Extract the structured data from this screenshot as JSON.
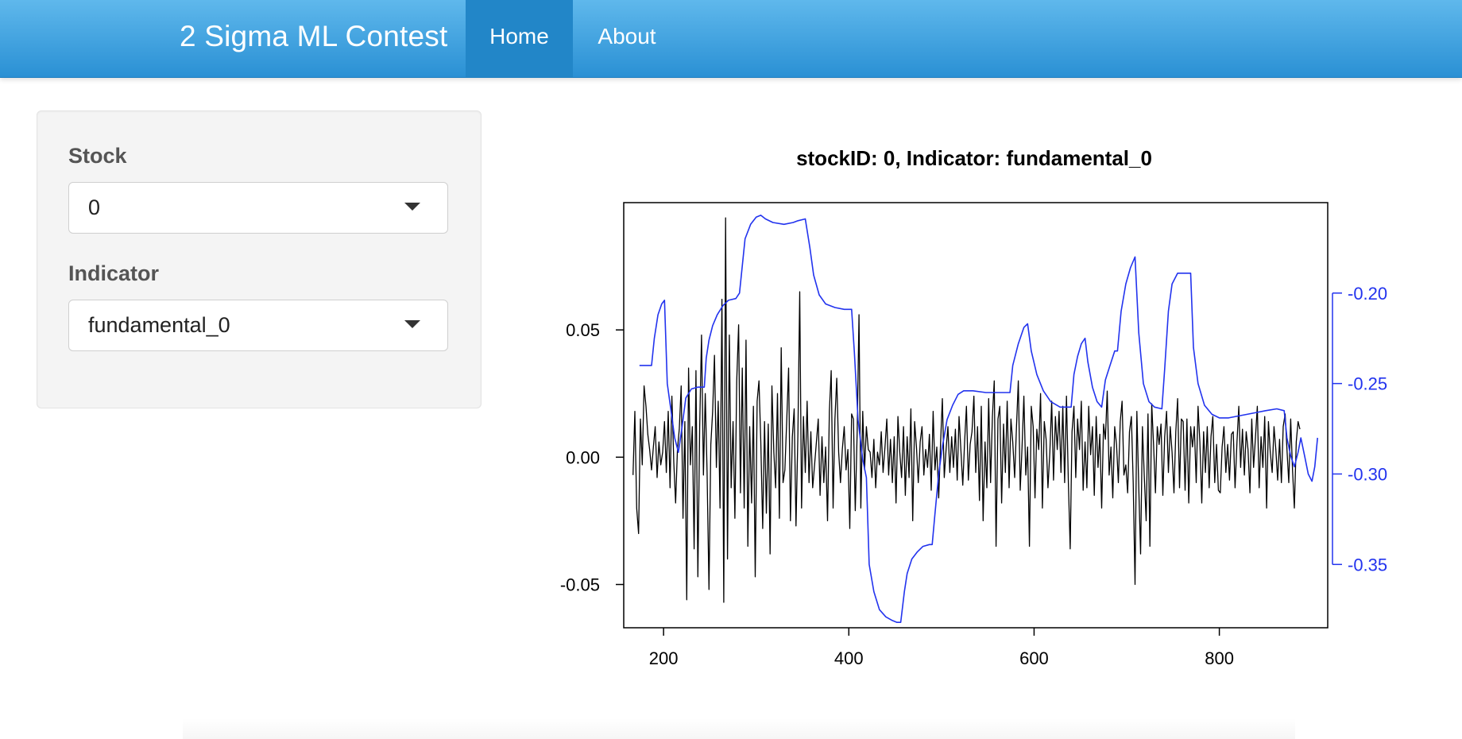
{
  "navbar": {
    "brand": "2 Sigma ML Contest",
    "tabs": [
      {
        "label": "Home",
        "active": true
      },
      {
        "label": "About",
        "active": false
      }
    ],
    "colors": {
      "top": "#5fb8ec",
      "bottom": "#2a90d4",
      "active_tab": "#2286c8"
    }
  },
  "sidebar": {
    "stock": {
      "label": "Stock",
      "value": "0"
    },
    "indicator": {
      "label": "Indicator",
      "value": "fundamental_0"
    }
  },
  "chart_data": {
    "type": "line",
    "title": "stockID: 0, Indicator: fundamental_0",
    "xlabel": "",
    "ylabel": "",
    "xlim": [
      157,
      917
    ],
    "ylim_left": [
      -0.067,
      0.1
    ],
    "ylim_right": [
      -0.385,
      -0.15
    ],
    "x_ticks": [
      {
        "value": 200,
        "label": "200"
      },
      {
        "value": 400,
        "label": "400"
      },
      {
        "value": 600,
        "label": "600"
      },
      {
        "value": 800,
        "label": "800"
      }
    ],
    "y_left_ticks": [
      {
        "value": 0.05,
        "label": "0.05"
      },
      {
        "value": 0.0,
        "label": "0.00"
      },
      {
        "value": -0.05,
        "label": "-0.05"
      }
    ],
    "y_right_ticks": [
      {
        "value": -0.2,
        "label": "-0.20"
      },
      {
        "value": -0.25,
        "label": "-0.25"
      },
      {
        "value": -0.3,
        "label": "-0.30"
      },
      {
        "value": -0.35,
        "label": "-0.35"
      }
    ],
    "grid": false,
    "series": [
      {
        "axis": "left",
        "color": "#000000",
        "x_start": 167,
        "x_step": 2,
        "values": [
          -0.007,
          0.018,
          -0.02,
          -0.03,
          0.015,
          -0.003,
          0.028,
          0.02,
          0.009,
          0.003,
          -0.005,
          0.004,
          0.012,
          -0.008,
          0.006,
          -0.003,
          0.002,
          0.014,
          -0.006,
          0.018,
          -0.012,
          0.024,
          -0.002,
          -0.018,
          0.003,
          0.011,
          0.028,
          -0.024,
          0.014,
          -0.056,
          0.035,
          -0.003,
          0.012,
          -0.036,
          0.034,
          -0.047,
          0.012,
          0.048,
          -0.007,
          0.025,
          -0.006,
          -0.052,
          0.005,
          0.018,
          0.04,
          -0.004,
          0.022,
          -0.02,
          0.062,
          -0.057,
          0.094,
          -0.04,
          0.048,
          -0.012,
          0.014,
          -0.024,
          0.03,
          0.052,
          -0.014,
          0.035,
          -0.02,
          0.046,
          -0.035,
          0.012,
          -0.018,
          0.02,
          -0.047,
          0.022,
          0.03,
          0.006,
          -0.028,
          0.014,
          -0.022,
          0.013,
          -0.038,
          0.028,
          0.002,
          -0.012,
          0.025,
          -0.024,
          0.043,
          -0.01,
          -0.005,
          0.015,
          0.035,
          -0.025,
          0.008,
          0.019,
          -0.027,
          0.009,
          0.065,
          -0.02,
          0.016,
          -0.006,
          0.022,
          -0.01,
          0.01,
          -0.012,
          -0.003,
          0.006,
          0.015,
          -0.015,
          0.008,
          -0.01,
          0.004,
          -0.025,
          0.018,
          0.034,
          -0.02,
          0.015,
          0.031,
          0.002,
          -0.01,
          0.003,
          0.012,
          -0.005,
          0.003,
          -0.028,
          0.017,
          0.015,
          -0.021,
          0.01,
          0.056,
          -0.02,
          0.018,
          -0.005,
          0.012,
          0.003,
          0.002,
          -0.008,
          0.007,
          -0.012,
          0.002,
          -0.003,
          0.01,
          -0.006,
          0.004,
          0.015,
          -0.007,
          0.007,
          -0.01,
          0.008,
          -0.018,
          0.016,
          0.002,
          -0.008,
          0.012,
          -0.015,
          0.008,
          -0.008,
          0.019,
          -0.025,
          0.014,
          0.004,
          -0.01,
          0.006,
          0.012,
          -0.007,
          0.003,
          -0.004,
          0.009,
          -0.013,
          0.018,
          -0.005,
          0.004,
          -0.016,
          0.005,
          0.023,
          -0.008,
          0.003,
          0.012,
          -0.006,
          0.008,
          -0.004,
          0.011,
          -0.009,
          0.016,
          0.003,
          -0.011,
          0.006,
          0.02,
          -0.009,
          0.005,
          0.01,
          0.024,
          -0.006,
          0.012,
          -0.017,
          0.02,
          -0.025,
          0.006,
          -0.012,
          0.023,
          -0.01,
          0.016,
          0.03,
          -0.035,
          0.015,
          0.02,
          -0.018,
          0.013,
          -0.006,
          0.022,
          -0.012,
          0.015,
          0.006,
          -0.008,
          0.012,
          0.03,
          -0.013,
          0.004,
          0.024,
          -0.007,
          0.004,
          -0.035,
          0.02,
          0.012,
          -0.016,
          0.011,
          0.003,
          0.025,
          -0.02,
          0.014,
          0.007,
          -0.012,
          0.002,
          0.022,
          -0.009,
          0.016,
          0.003,
          0.018,
          -0.006,
          0.02,
          -0.01,
          0.024,
          -0.01,
          -0.036,
          0.01,
          0.02,
          -0.008,
          0.015,
          0.003,
          0.022,
          -0.013,
          0.006,
          -0.012,
          0.02,
          0.001,
          0.012,
          -0.015,
          0.016,
          -0.004,
          0.009,
          -0.02,
          0.013,
          0.007,
          0.026,
          -0.007,
          0.004,
          -0.016,
          0.012,
          0.005,
          -0.01,
          0.014,
          0.022,
          -0.007,
          -0.003,
          -0.014,
          0.01,
          0.016,
          -0.01,
          -0.05,
          0.018,
          -0.012,
          -0.038,
          0.012,
          -0.008,
          -0.025,
          0.017,
          -0.035,
          0.021,
          0.005,
          -0.014,
          0.012,
          0.005,
          0.013,
          -0.015,
          0.008,
          0.018,
          -0.006,
          0.012,
          0.002,
          -0.014,
          0.01,
          0.023,
          -0.012,
          0.015,
          0.014,
          -0.013,
          0.015,
          -0.018,
          0.012,
          0.004,
          0.012,
          -0.01,
          0.02,
          0.006,
          -0.018,
          0.01,
          -0.006,
          0.012,
          -0.012,
          0.008,
          0.016,
          -0.01,
          0.005,
          -0.013,
          -0.014,
          0.004,
          0.012,
          -0.006,
          0.005,
          -0.009,
          0.009,
          0.01,
          -0.012,
          0.006,
          0.02,
          -0.004,
          0.011,
          -0.007,
          0.01,
          0.003,
          -0.014,
          0.015,
          -0.004,
          0.008,
          0.02,
          -0.012,
          0.008,
          -0.004,
          0.016,
          -0.02,
          0.014,
          0.002,
          -0.006,
          0.012,
          0.003,
          -0.009,
          0.007,
          -0.01,
          0.012,
          0.017,
          0.003,
          -0.01,
          0.015,
          -0.005,
          -0.02,
          0.006,
          0.014,
          0.011
        ]
      },
      {
        "axis": "right",
        "color": "#2233ee",
        "points": [
          [
            174,
            -0.24
          ],
          [
            187,
            -0.24
          ],
          [
            190,
            -0.225
          ],
          [
            194,
            -0.212
          ],
          [
            198,
            -0.206
          ],
          [
            201,
            -0.204
          ],
          [
            204,
            -0.25
          ],
          [
            208,
            -0.265
          ],
          [
            212,
            -0.28
          ],
          [
            216,
            -0.288
          ],
          [
            220,
            -0.274
          ],
          [
            224,
            -0.258
          ],
          [
            230,
            -0.253
          ],
          [
            237,
            -0.252
          ],
          [
            244,
            -0.252
          ],
          [
            246,
            -0.236
          ],
          [
            249,
            -0.226
          ],
          [
            253,
            -0.218
          ],
          [
            258,
            -0.212
          ],
          [
            264,
            -0.207
          ],
          [
            270,
            -0.204
          ],
          [
            278,
            -0.203
          ],
          [
            282,
            -0.2
          ],
          [
            288,
            -0.17
          ],
          [
            294,
            -0.162
          ],
          [
            300,
            -0.158
          ],
          [
            305,
            -0.157
          ],
          [
            310,
            -0.159
          ],
          [
            318,
            -0.161
          ],
          [
            330,
            -0.162
          ],
          [
            340,
            -0.161
          ],
          [
            345,
            -0.16
          ],
          [
            353,
            -0.159
          ],
          [
            358,
            -0.175
          ],
          [
            362,
            -0.19
          ],
          [
            368,
            -0.201
          ],
          [
            375,
            -0.206
          ],
          [
            385,
            -0.208
          ],
          [
            395,
            -0.209
          ],
          [
            403,
            -0.209
          ],
          [
            406,
            -0.233
          ],
          [
            410,
            -0.27
          ],
          [
            415,
            -0.292
          ],
          [
            419,
            -0.302
          ],
          [
            422,
            -0.35
          ],
          [
            427,
            -0.365
          ],
          [
            433,
            -0.375
          ],
          [
            440,
            -0.379
          ],
          [
            447,
            -0.381
          ],
          [
            452,
            -0.382
          ],
          [
            456,
            -0.382
          ],
          [
            460,
            -0.365
          ],
          [
            463,
            -0.355
          ],
          [
            468,
            -0.347
          ],
          [
            474,
            -0.343
          ],
          [
            480,
            -0.34
          ],
          [
            487,
            -0.339
          ],
          [
            490,
            -0.339
          ],
          [
            493,
            -0.322
          ],
          [
            497,
            -0.3
          ],
          [
            501,
            -0.285
          ],
          [
            506,
            -0.27
          ],
          [
            512,
            -0.262
          ],
          [
            518,
            -0.256
          ],
          [
            524,
            -0.254
          ],
          [
            534,
            -0.254
          ],
          [
            548,
            -0.255
          ],
          [
            562,
            -0.255
          ],
          [
            574,
            -0.255
          ],
          [
            577,
            -0.24
          ],
          [
            583,
            -0.228
          ],
          [
            589,
            -0.219
          ],
          [
            593,
            -0.217
          ],
          [
            597,
            -0.232
          ],
          [
            603,
            -0.245
          ],
          [
            610,
            -0.254
          ],
          [
            618,
            -0.26
          ],
          [
            628,
            -0.263
          ],
          [
            640,
            -0.263
          ],
          [
            643,
            -0.245
          ],
          [
            647,
            -0.235
          ],
          [
            651,
            -0.228
          ],
          [
            655,
            -0.225
          ],
          [
            658,
            -0.238
          ],
          [
            663,
            -0.252
          ],
          [
            668,
            -0.26
          ],
          [
            673,
            -0.263
          ],
          [
            677,
            -0.248
          ],
          [
            682,
            -0.24
          ],
          [
            687,
            -0.232
          ],
          [
            690,
            -0.232
          ],
          [
            694,
            -0.21
          ],
          [
            699,
            -0.195
          ],
          [
            704,
            -0.186
          ],
          [
            709,
            -0.18
          ],
          [
            713,
            -0.222
          ],
          [
            718,
            -0.25
          ],
          [
            724,
            -0.26
          ],
          [
            730,
            -0.263
          ],
          [
            738,
            -0.264
          ],
          [
            741,
            -0.242
          ],
          [
            745,
            -0.21
          ],
          [
            749,
            -0.195
          ],
          [
            755,
            -0.189
          ],
          [
            762,
            -0.189
          ],
          [
            769,
            -0.189
          ],
          [
            772,
            -0.23
          ],
          [
            777,
            -0.25
          ],
          [
            784,
            -0.262
          ],
          [
            792,
            -0.267
          ],
          [
            800,
            -0.269
          ],
          [
            810,
            -0.269
          ],
          [
            820,
            -0.268
          ],
          [
            830,
            -0.267
          ],
          [
            840,
            -0.266
          ],
          [
            850,
            -0.265
          ],
          [
            862,
            -0.264
          ],
          [
            870,
            -0.265
          ],
          [
            873,
            -0.28
          ],
          [
            877,
            -0.29
          ],
          [
            881,
            -0.296
          ],
          [
            885,
            -0.288
          ],
          [
            888,
            -0.28
          ],
          [
            892,
            -0.29
          ],
          [
            896,
            -0.3
          ],
          [
            900,
            -0.304
          ],
          [
            903,
            -0.296
          ],
          [
            906,
            -0.28
          ]
        ]
      }
    ]
  }
}
